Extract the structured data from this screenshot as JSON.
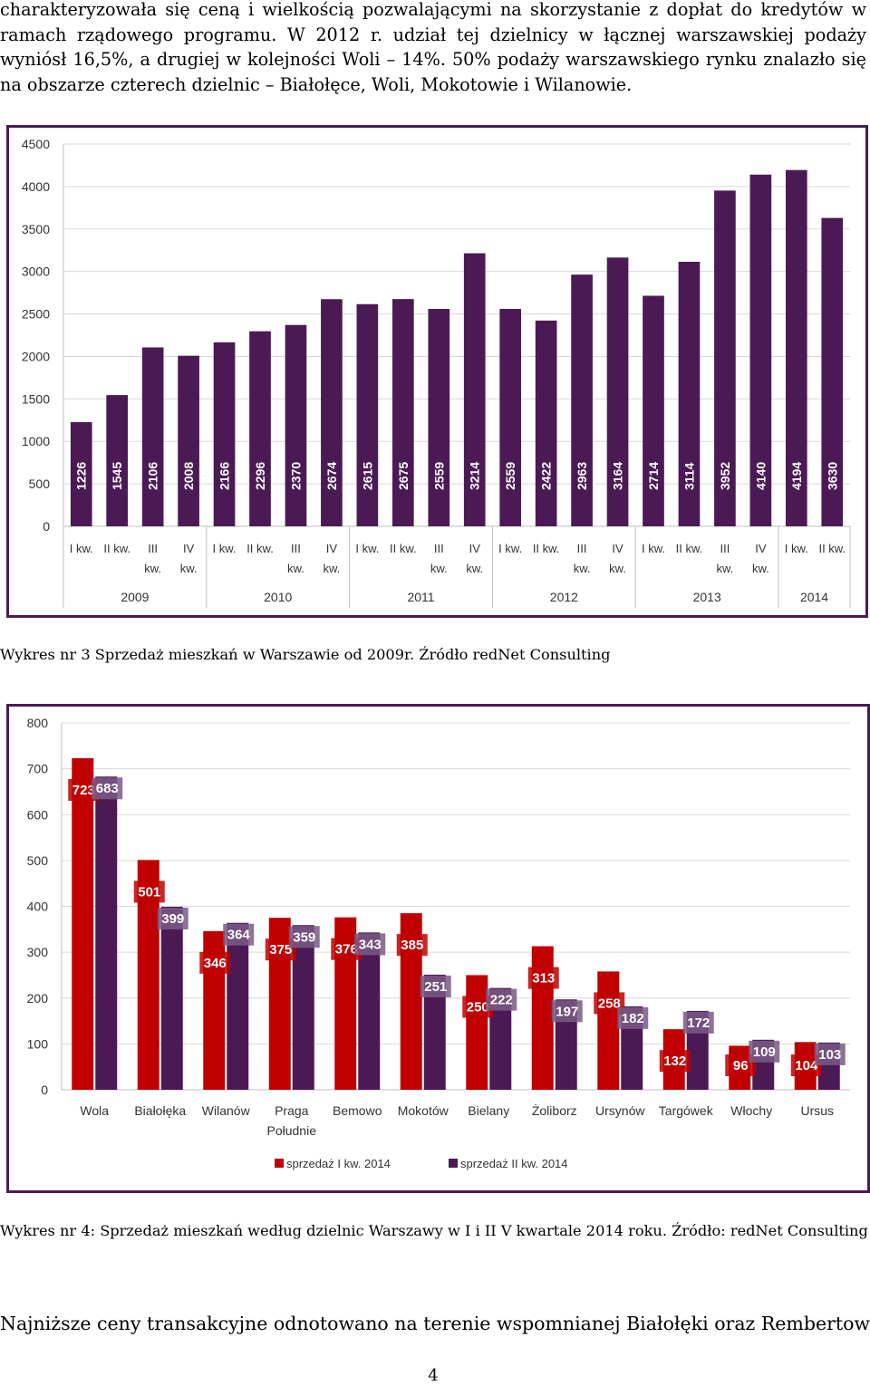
{
  "intro_paragraph": "charakteryzowała się ceną i wielkością pozwalającymi na skorzystanie z dopłat do kredytów w ramach rządowego programu. W 2012 r. udział tej dzielnicy w łącznej warszawskiej podaży wyniósł 16,5%, a drugiej w kolejności Woli – 14%. 50% podaży warszawskiego rynku znalazło się na obszarze czterech dzielnic – Białołęce, Woli, Mokotowie i Wilanowie.",
  "caption_chart3": "Wykres nr 3 Sprzedaż mieszkań w Warszawie od 2009r. Źródło redNet Consulting",
  "caption_chart4": "Wykres nr 4: Sprzedaż mieszkań według dzielnic Warszawy w I i II V kwartale 2014 roku. Źródło: redNet Consulting",
  "bottom_text": "Najniższe ceny transakcyjne odnotowano na terenie wspomnianej Białołęki oraz Rembertowa -",
  "page_number": "4",
  "colors": {
    "purple": "#4b1a55",
    "red": "#c00000",
    "frame": "#4b1a55",
    "grid": "#d9d9d9"
  },
  "chart_data": [
    {
      "type": "bar",
      "title": "",
      "xlabel": "",
      "ylabel": "",
      "ylim": [
        0,
        4500
      ],
      "yticks": [
        "0",
        "500",
        "1000",
        "1500",
        "2000",
        "2500",
        "3000",
        "3500",
        "4000",
        "4500"
      ],
      "grid": true,
      "categories": [
        [
          "I kw."
        ],
        [
          "II kw."
        ],
        [
          "III",
          "kw."
        ],
        [
          "IV",
          "kw."
        ],
        [
          "I kw."
        ],
        [
          "II kw."
        ],
        [
          "III",
          "kw."
        ],
        [
          "IV",
          "kw."
        ],
        [
          "I kw."
        ],
        [
          "II kw."
        ],
        [
          "III",
          "kw."
        ],
        [
          "IV",
          "kw."
        ],
        [
          "I kw."
        ],
        [
          "II kw."
        ],
        [
          "III",
          "kw."
        ],
        [
          "IV",
          "kw."
        ],
        [
          "I kw."
        ],
        [
          "II kw."
        ],
        [
          "III",
          "kw."
        ],
        [
          "IV",
          "kw."
        ],
        [
          "I kw."
        ],
        [
          "II kw."
        ]
      ],
      "years": [
        {
          "label": "2009",
          "count": 4
        },
        {
          "label": "2010",
          "count": 4
        },
        {
          "label": "2011",
          "count": 4
        },
        {
          "label": "2012",
          "count": 4
        },
        {
          "label": "2013",
          "count": 4
        },
        {
          "label": "2014",
          "count": 2
        }
      ],
      "values": [
        1226,
        1545,
        2106,
        2008,
        2166,
        2296,
        2370,
        2674,
        2615,
        2675,
        2559,
        3214,
        2559,
        2422,
        2963,
        3164,
        2714,
        3114,
        3952,
        4140,
        4194,
        3630
      ]
    },
    {
      "type": "bar",
      "title": "",
      "xlabel": "",
      "ylabel": "",
      "ylim": [
        0,
        800
      ],
      "yticks": [
        "0",
        "100",
        "200",
        "300",
        "400",
        "500",
        "600",
        "700",
        "800"
      ],
      "grid": true,
      "legend_position": "bottom",
      "categories": [
        [
          "Wola"
        ],
        [
          "Białołęka"
        ],
        [
          "Wilanów"
        ],
        [
          "Praga",
          "Południe"
        ],
        [
          "Bemowo"
        ],
        [
          "Mokotów"
        ],
        [
          "Bielany"
        ],
        [
          "Żoliborz"
        ],
        [
          "Ursynów"
        ],
        [
          "Targówek"
        ],
        [
          "Włochy"
        ],
        [
          "Ursus"
        ]
      ],
      "series": [
        {
          "name": "sprzedaż I kw. 2014",
          "color": "#c00000",
          "values": [
            723,
            501,
            346,
            375,
            376,
            385,
            250,
            313,
            258,
            132,
            96,
            104
          ]
        },
        {
          "name": "sprzedaż II kw. 2014",
          "color": "#4b1a55",
          "values": [
            683,
            399,
            364,
            359,
            343,
            251,
            222,
            197,
            182,
            172,
            109,
            103
          ]
        }
      ]
    }
  ]
}
